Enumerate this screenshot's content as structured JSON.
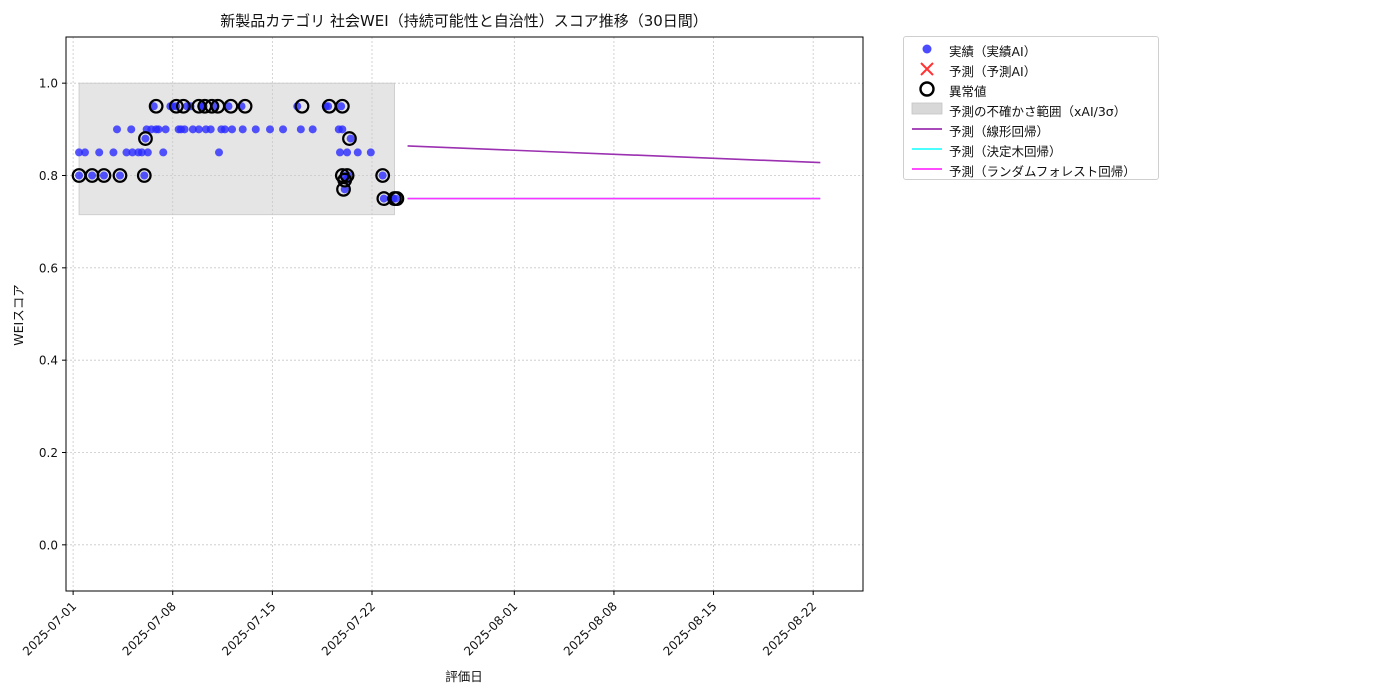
{
  "chart_data": {
    "type": "scatter",
    "title": "新製品カテゴリ 社会WEI（持続可能性と自治性）スコア推移（30日間）",
    "xlabel": "評価日",
    "ylabel": "WEIスコア",
    "xlim": [
      "2025-06-30T12:00",
      "2025-08-25T12:00"
    ],
    "ylim": [
      -0.1,
      1.1
    ],
    "xticks": [
      "2025-07-01",
      "2025-07-08",
      "2025-07-15",
      "2025-07-22",
      "2025-08-01",
      "2025-08-08",
      "2025-08-15",
      "2025-08-22"
    ],
    "yticks": [
      "0.0",
      "0.2",
      "0.4",
      "0.6",
      "0.8",
      "1.0"
    ],
    "grid": true,
    "legend_position": "outside-top-right",
    "uncertainty_band": {
      "x_start": "2025-07-01T10:00",
      "x_end": "2025-07-23T14:00",
      "y_low": 0.715,
      "y_high": 1.0
    },
    "series": [
      {
        "name": "実績（実績AI）",
        "kind": "scatter",
        "color": "#2b2bff",
        "points": [
          [
            "2025-07-01T10:00",
            0.8
          ],
          [
            "2025-07-01T10:00",
            0.85
          ],
          [
            "2025-07-01T20:00",
            0.85
          ],
          [
            "2025-07-02T08:00",
            0.8
          ],
          [
            "2025-07-02T20:00",
            0.85
          ],
          [
            "2025-07-03T04:00",
            0.8
          ],
          [
            "2025-07-03T20:00",
            0.85
          ],
          [
            "2025-07-04T02:00",
            0.9
          ],
          [
            "2025-07-04T07:00",
            0.8
          ],
          [
            "2025-07-04T18:00",
            0.85
          ],
          [
            "2025-07-05T02:00",
            0.9
          ],
          [
            "2025-07-05T04:00",
            0.85
          ],
          [
            "2025-07-05T14:00",
            0.85
          ],
          [
            "2025-07-05T20:00",
            0.85
          ],
          [
            "2025-07-06T00:00",
            0.8
          ],
          [
            "2025-07-06T02:00",
            0.88
          ],
          [
            "2025-07-06T04:00",
            0.9
          ],
          [
            "2025-07-06T06:00",
            0.85
          ],
          [
            "2025-07-06T12:00",
            0.9
          ],
          [
            "2025-07-06T16:00",
            0.95
          ],
          [
            "2025-07-06T20:00",
            0.9
          ],
          [
            "2025-07-07T00:00",
            0.9
          ],
          [
            "2025-07-07T08:00",
            0.85
          ],
          [
            "2025-07-07T12:00",
            0.9
          ],
          [
            "2025-07-07T20:00",
            0.95
          ],
          [
            "2025-07-08T00:00",
            0.95
          ],
          [
            "2025-07-08T06:00",
            0.95
          ],
          [
            "2025-07-08T10:00",
            0.9
          ],
          [
            "2025-07-08T14:00",
            0.9
          ],
          [
            "2025-07-08T20:00",
            0.9
          ],
          [
            "2025-07-09T00:00",
            0.95
          ],
          [
            "2025-07-09T06:00",
            0.95
          ],
          [
            "2025-07-09T10:00",
            0.9
          ],
          [
            "2025-07-09T20:00",
            0.9
          ],
          [
            "2025-07-10T00:00",
            0.95
          ],
          [
            "2025-07-10T04:00",
            0.95
          ],
          [
            "2025-07-10T08:00",
            0.9
          ],
          [
            "2025-07-10T16:00",
            0.9
          ],
          [
            "2025-07-11T00:00",
            0.95
          ],
          [
            "2025-07-11T06:00",
            0.85
          ],
          [
            "2025-07-11T10:00",
            0.9
          ],
          [
            "2025-07-11T16:00",
            0.9
          ],
          [
            "2025-07-11T22:00",
            0.95
          ],
          [
            "2025-07-12T04:00",
            0.9
          ],
          [
            "2025-07-12T20:00",
            0.95
          ],
          [
            "2025-07-12T22:00",
            0.9
          ],
          [
            "2025-07-13T20:00",
            0.9
          ],
          [
            "2025-07-14T20:00",
            0.9
          ],
          [
            "2025-07-15T18:00",
            0.9
          ],
          [
            "2025-07-16T18:00",
            0.95
          ],
          [
            "2025-07-17T00:00",
            0.9
          ],
          [
            "2025-07-17T20:00",
            0.9
          ],
          [
            "2025-07-18T18:00",
            0.95
          ],
          [
            "2025-07-18T22:00",
            0.95
          ],
          [
            "2025-07-19T16:00",
            0.9
          ],
          [
            "2025-07-19T18:00",
            0.85
          ],
          [
            "2025-07-19T20:00",
            0.95
          ],
          [
            "2025-07-19T22:00",
            0.9
          ],
          [
            "2025-07-20T00:00",
            0.8
          ],
          [
            "2025-07-20T02:00",
            0.77
          ],
          [
            "2025-07-20T04:00",
            0.79
          ],
          [
            "2025-07-20T06:00",
            0.85
          ],
          [
            "2025-07-20T08:00",
            0.8
          ],
          [
            "2025-07-20T12:00",
            0.88
          ],
          [
            "2025-07-21T00:00",
            0.85
          ],
          [
            "2025-07-21T22:00",
            0.85
          ],
          [
            "2025-07-22T18:00",
            0.8
          ],
          [
            "2025-07-22T20:00",
            0.75
          ],
          [
            "2025-07-23T12:00",
            0.75
          ],
          [
            "2025-07-23T16:00",
            0.75
          ]
        ]
      },
      {
        "name": "予測（予測AI）",
        "kind": "scatter-x",
        "color": "#ff3333",
        "points": []
      },
      {
        "name": "異常値",
        "kind": "ring",
        "color": "#000000",
        "points": [
          [
            "2025-07-01T10:00",
            0.8
          ],
          [
            "2025-07-02T08:00",
            0.8
          ],
          [
            "2025-07-03T04:00",
            0.8
          ],
          [
            "2025-07-04T07:00",
            0.8
          ],
          [
            "2025-07-06T00:00",
            0.8
          ],
          [
            "2025-07-06T02:00",
            0.88
          ],
          [
            "2025-07-06T20:00",
            0.95
          ],
          [
            "2025-07-08T06:00",
            0.95
          ],
          [
            "2025-07-08T18:00",
            0.95
          ],
          [
            "2025-07-09T20:00",
            0.95
          ],
          [
            "2025-07-10T06:00",
            0.95
          ],
          [
            "2025-07-10T18:00",
            0.95
          ],
          [
            "2025-07-11T04:00",
            0.95
          ],
          [
            "2025-07-12T02:00",
            0.95
          ],
          [
            "2025-07-13T02:00",
            0.95
          ],
          [
            "2025-07-17T02:00",
            0.95
          ],
          [
            "2025-07-19T00:00",
            0.95
          ],
          [
            "2025-07-19T22:00",
            0.95
          ],
          [
            "2025-07-19T22:00",
            0.8
          ],
          [
            "2025-07-20T00:00",
            0.77
          ],
          [
            "2025-07-20T02:00",
            0.79
          ],
          [
            "2025-07-20T06:00",
            0.8
          ],
          [
            "2025-07-20T10:00",
            0.88
          ],
          [
            "2025-07-22T18:00",
            0.8
          ],
          [
            "2025-07-22T20:00",
            0.75
          ],
          [
            "2025-07-23T14:00",
            0.75
          ],
          [
            "2025-07-23T18:00",
            0.75
          ]
        ]
      },
      {
        "name": "予測（線形回帰）",
        "kind": "line",
        "color": "#9b30b0",
        "points": [
          [
            "2025-07-24T12:00",
            0.864
          ],
          [
            "2025-08-22T12:00",
            0.828
          ]
        ]
      },
      {
        "name": "予測（決定木回帰）",
        "kind": "line",
        "color": "#33ffff",
        "points": [
          [
            "2025-07-24T12:00",
            0.75
          ],
          [
            "2025-08-22T12:00",
            0.75
          ]
        ]
      },
      {
        "name": "予測（ランダムフォレスト回帰）",
        "kind": "line",
        "color": "#ff33ff",
        "points": [
          [
            "2025-07-24T12:00",
            0.75
          ],
          [
            "2025-08-22T12:00",
            0.75
          ]
        ]
      }
    ],
    "band_legend_label": "予測の不確かさ範囲（xAI/3σ）"
  }
}
